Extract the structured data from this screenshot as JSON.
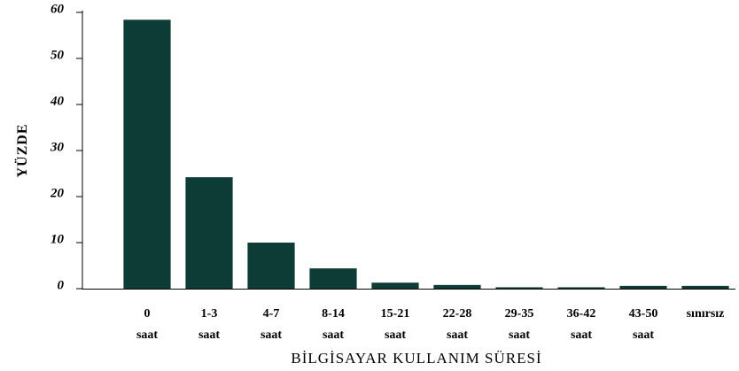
{
  "chart_data": {
    "type": "bar",
    "ylabel": "YÜZDE",
    "xlabel": "BİLGİSAYAR KULLANIM SÜRESİ",
    "categories": [
      "0 saat",
      "1-3 saat",
      "4-7 saat",
      "8-14 saat",
      "15-21 saat",
      "22-28 saat",
      "29-35 saat",
      "36-42 saat",
      "43-50 saat",
      "sınırsız"
    ],
    "values": [
      58.4,
      24.2,
      10,
      4.4,
      1.3,
      0.8,
      0.3,
      0.3,
      0.6,
      0.6
    ],
    "color": "#0d3b36",
    "ylim": [
      0,
      60
    ],
    "yticks": [
      0,
      10,
      20,
      30,
      40,
      50,
      60
    ],
    "grid": false
  }
}
